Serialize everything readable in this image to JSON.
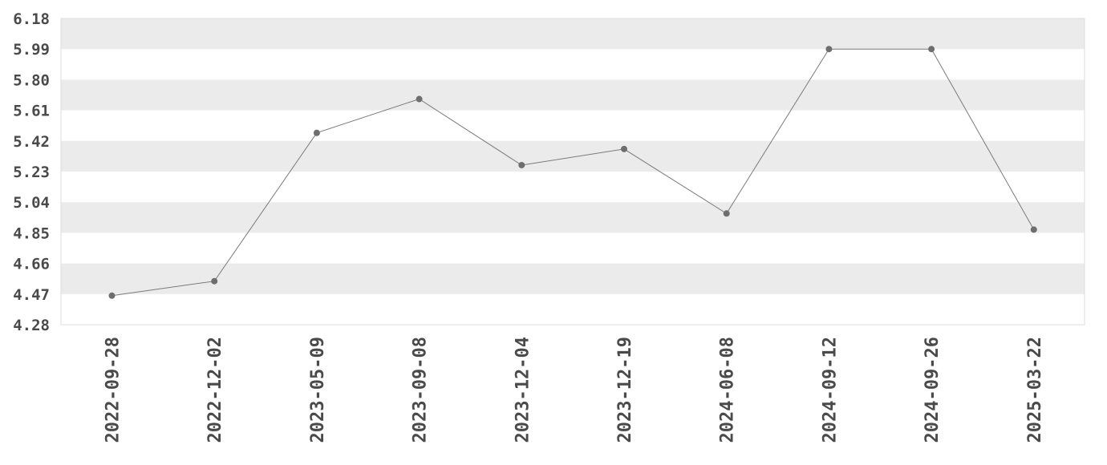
{
  "chart_data": {
    "type": "line",
    "title": "",
    "xlabel": "",
    "ylabel": "",
    "x": [
      "2022-09-28",
      "2022-12-02",
      "2023-05-09",
      "2023-09-08",
      "2023-12-04",
      "2023-12-19",
      "2024-06-08",
      "2024-09-12",
      "2024-09-26",
      "2025-03-22"
    ],
    "values": [
      4.46,
      4.55,
      5.47,
      5.68,
      5.27,
      5.37,
      4.97,
      5.99,
      5.99,
      4.87
    ],
    "y_ticks": [
      "4.28",
      "4.47",
      "4.66",
      "4.85",
      "5.04",
      "5.23",
      "5.42",
      "5.61",
      "5.80",
      "5.99",
      "6.18"
    ],
    "ylim": [
      4.28,
      6.18
    ],
    "grid": "alternating horizontal bands",
    "legend": "none",
    "colors": {
      "line": "#7a7a7a",
      "marker": "#6e6e6e",
      "band": "#ebebeb",
      "frame": "#dddddd",
      "text": "#4a4a4a"
    }
  }
}
